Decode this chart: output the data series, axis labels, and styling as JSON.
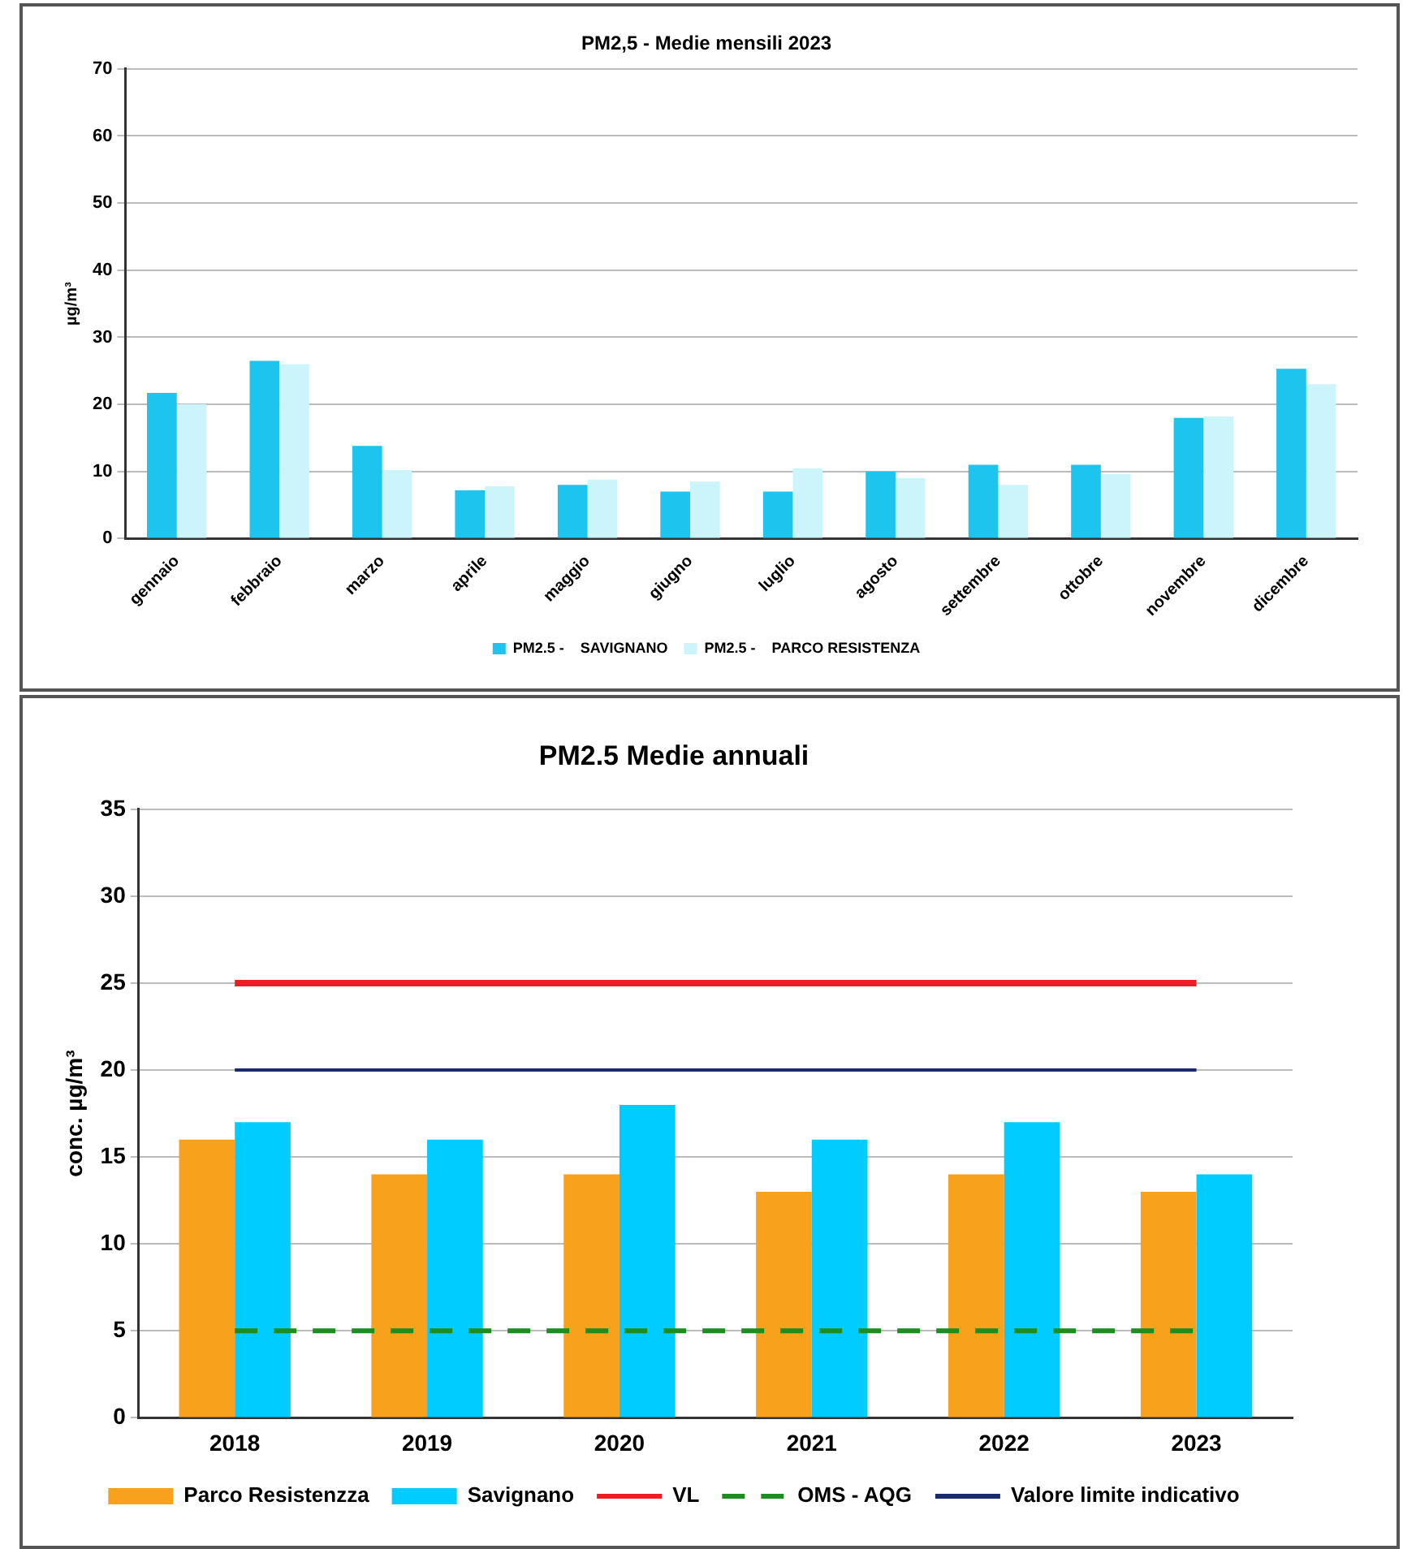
{
  "chart_data": [
    {
      "type": "bar",
      "title": "PM2,5 - Medie mensili 2023",
      "ylabel": "µg/m³",
      "categories": [
        "gennaio",
        "febbraio",
        "marzo",
        "aprile",
        "maggio",
        "giugno",
        "luglio",
        "agosto",
        "settembre",
        "ottobre",
        "novembre",
        "dicembre"
      ],
      "series": [
        {
          "name": "PM2.5 -    SAVIGNANO",
          "color": "#1cc4ee",
          "values": [
            21.7,
            26.5,
            13.8,
            7.2,
            8,
            7,
            7,
            10,
            11,
            11,
            18,
            25.3
          ]
        },
        {
          "name": "PM2.5 -    PARCO RESISTENZA",
          "color": "#ccf5fb",
          "values": [
            20,
            26,
            10.2,
            7.8,
            8.8,
            8.5,
            10.5,
            9,
            8,
            9.6,
            18.2,
            23
          ]
        }
      ],
      "ylim": [
        0,
        70
      ],
      "yticks": [
        0,
        10,
        20,
        30,
        40,
        50,
        60,
        70
      ],
      "grid": "y",
      "legend": "bottom"
    },
    {
      "type": "bar",
      "title": "PM2.5 Medie annuali",
      "ylabel": "conc. µg/m³",
      "categories": [
        "2018",
        "2019",
        "2020",
        "2021",
        "2022",
        "2023"
      ],
      "series": [
        {
          "name": "Parco Resistenzza",
          "color": "#f7a11c",
          "values": [
            16,
            14,
            14,
            13,
            14,
            13
          ]
        },
        {
          "name": "Savignano",
          "color": "#00ccff",
          "values": [
            17,
            16,
            18,
            16,
            17,
            14
          ]
        }
      ],
      "ref_lines": [
        {
          "axis": "y",
          "value": 25,
          "label": "VL",
          "color": "#ee1c24",
          "line_style": "solid"
        },
        {
          "axis": "y",
          "value": 5,
          "label": "OMS - AQG",
          "color": "#1e8c1e",
          "line_style": "dashed"
        },
        {
          "axis": "y",
          "value": 20,
          "label": "Valore limite indicativo",
          "color": "#1a2a6c",
          "line_style": "solid"
        }
      ],
      "ylim": [
        0,
        35
      ],
      "yticks": [
        0,
        5,
        10,
        15,
        20,
        25,
        30,
        35
      ],
      "grid": "y",
      "legend": "bottom"
    }
  ]
}
